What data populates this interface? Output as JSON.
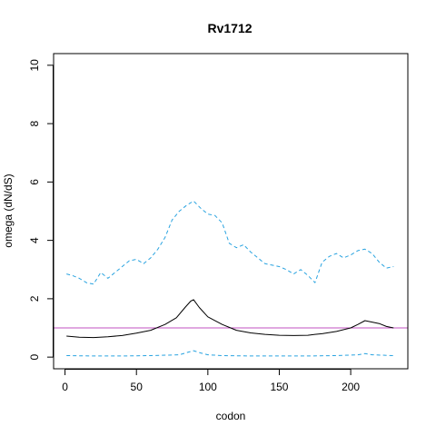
{
  "chart_data": {
    "type": "line",
    "title": "Rv1712",
    "xlabel": "codon",
    "ylabel": "omega (dN/dS)",
    "xlim": [
      -8,
      240
    ],
    "ylim": [
      -0.4,
      10.4
    ],
    "x_ticks": [
      0,
      50,
      100,
      150,
      200
    ],
    "y_ticks": [
      0,
      2,
      4,
      6,
      8,
      10
    ],
    "reference_line": {
      "y": 1,
      "color": "#C050C0"
    },
    "series": [
      {
        "style": "solid",
        "color": "#000000",
        "x": [
          1,
          10,
          20,
          30,
          40,
          50,
          60,
          70,
          78,
          84,
          88,
          90,
          94,
          100,
          110,
          120,
          130,
          140,
          150,
          160,
          170,
          175,
          180,
          190,
          200,
          205,
          210,
          215,
          220,
          225,
          230
        ],
        "y": [
          0.72,
          0.68,
          0.67,
          0.7,
          0.74,
          0.82,
          0.92,
          1.12,
          1.35,
          1.7,
          1.92,
          1.97,
          1.7,
          1.38,
          1.12,
          0.92,
          0.83,
          0.78,
          0.75,
          0.74,
          0.75,
          0.78,
          0.8,
          0.88,
          1.0,
          1.12,
          1.25,
          1.2,
          1.15,
          1.05,
          1.0
        ]
      },
      {
        "style": "dashed",
        "color": "#29A3E0",
        "x": [
          1,
          5,
          10,
          15,
          20,
          25,
          30,
          35,
          40,
          45,
          50,
          55,
          60,
          65,
          70,
          75,
          80,
          85,
          90,
          95,
          100,
          105,
          110,
          115,
          120,
          125,
          130,
          135,
          140,
          145,
          150,
          155,
          160,
          165,
          170,
          175,
          180,
          185,
          190,
          195,
          200,
          205,
          210,
          215,
          220,
          225,
          230
        ],
        "y": [
          2.85,
          2.8,
          2.7,
          2.55,
          2.5,
          2.9,
          2.7,
          2.9,
          3.1,
          3.3,
          3.35,
          3.2,
          3.4,
          3.7,
          4.1,
          4.7,
          5.0,
          5.2,
          5.35,
          5.1,
          4.9,
          4.85,
          4.6,
          3.9,
          3.75,
          3.85,
          3.6,
          3.4,
          3.2,
          3.15,
          3.1,
          3.0,
          2.85,
          3.0,
          2.8,
          2.55,
          3.25,
          3.45,
          3.55,
          3.4,
          3.5,
          3.65,
          3.7,
          3.55,
          3.25,
          3.05,
          3.1
        ]
      },
      {
        "style": "dashed",
        "color": "#29A3E0",
        "x": [
          1,
          20,
          40,
          60,
          80,
          87,
          90,
          95,
          100,
          110,
          130,
          150,
          170,
          190,
          205,
          210,
          215,
          230
        ],
        "y": [
          0.05,
          0.04,
          0.04,
          0.05,
          0.08,
          0.18,
          0.22,
          0.14,
          0.08,
          0.05,
          0.04,
          0.04,
          0.04,
          0.05,
          0.08,
          0.12,
          0.08,
          0.05
        ]
      }
    ]
  }
}
